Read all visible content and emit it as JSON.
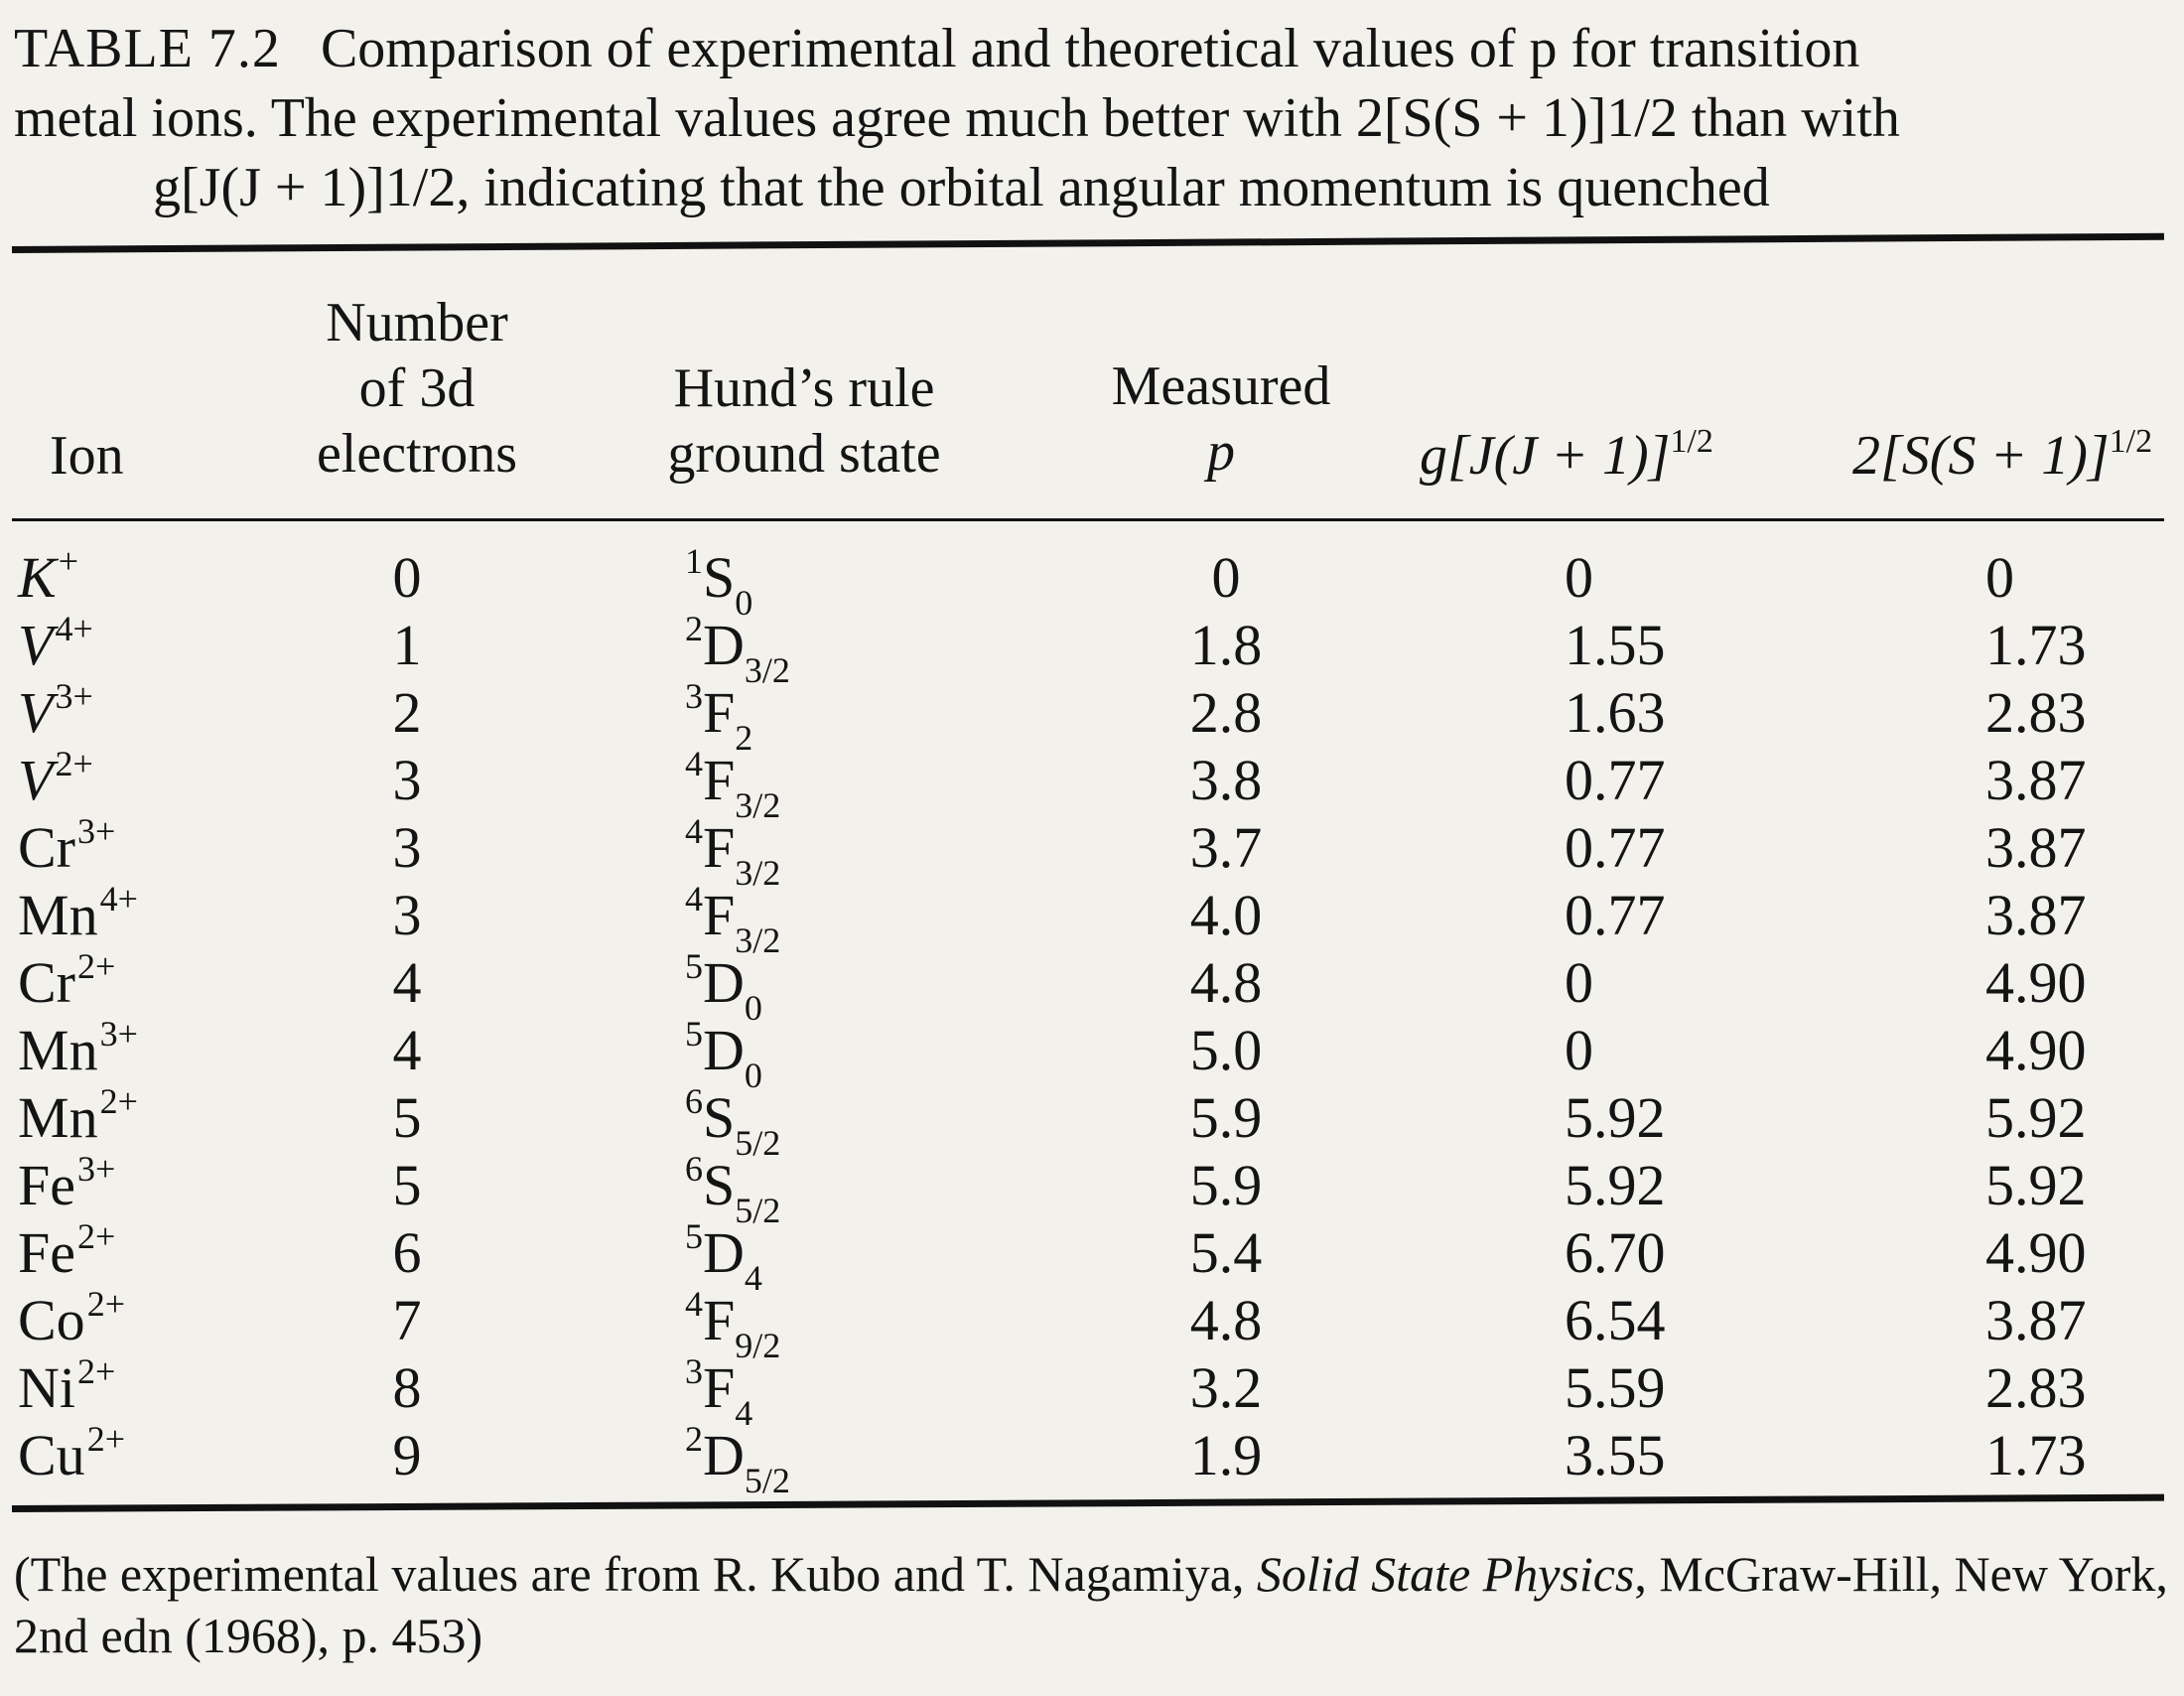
{
  "caption": {
    "label": "TABLE 7.2",
    "line1": "Comparison of experimental and theoretical values of p for transition",
    "line2": "metal ions. The experimental values agree much better with 2[S(S + 1)]1/2 than with",
    "line3": "g[J(J + 1)]1/2, indicating that the orbital angular momentum is quenched"
  },
  "headers": {
    "ion": "Ion",
    "num_line1": "Number",
    "num_line2": "of 3d",
    "num_line3": "electrons",
    "hund_line1": "Hund’s rule",
    "hund_line2": "ground state",
    "meas_line1": "Measured",
    "meas_line2": "p",
    "g_main": "g[J(J + 1)]",
    "g_exp": "1/2",
    "s_main": "2[S(S + 1)]",
    "s_exp": "1/2"
  },
  "rows": [
    {
      "ion": "K",
      "charge": "+",
      "n": "0",
      "mult": "1",
      "letter": "S",
      "j": "0",
      "measured": "0",
      "g": "0",
      "s": "0"
    },
    {
      "ion": "V",
      "charge": "4+",
      "n": "1",
      "mult": "2",
      "letter": "D",
      "j": "3/2",
      "measured": "1.8",
      "g": "1.55",
      "s": "1.73"
    },
    {
      "ion": "V",
      "charge": "3+",
      "n": "2",
      "mult": "3",
      "letter": "F",
      "j": "2",
      "measured": "2.8",
      "g": "1.63",
      "s": "2.83"
    },
    {
      "ion": "V",
      "charge": "2+",
      "n": "3",
      "mult": "4",
      "letter": "F",
      "j": "3/2",
      "measured": "3.8",
      "g": "0.77",
      "s": "3.87"
    },
    {
      "ion": "Cr",
      "charge": "3+",
      "n": "3",
      "mult": "4",
      "letter": "F",
      "j": "3/2",
      "measured": "3.7",
      "g": "0.77",
      "s": "3.87"
    },
    {
      "ion": "Mn",
      "charge": "4+",
      "n": "3",
      "mult": "4",
      "letter": "F",
      "j": "3/2",
      "measured": "4.0",
      "g": "0.77",
      "s": "3.87"
    },
    {
      "ion": "Cr",
      "charge": "2+",
      "n": "4",
      "mult": "5",
      "letter": "D",
      "j": "0",
      "measured": "4.8",
      "g": "0",
      "s": "4.90"
    },
    {
      "ion": "Mn",
      "charge": "3+",
      "n": "4",
      "mult": "5",
      "letter": "D",
      "j": "0",
      "measured": "5.0",
      "g": "0",
      "s": "4.90"
    },
    {
      "ion": "Mn",
      "charge": "2+",
      "n": "5",
      "mult": "6",
      "letter": "S",
      "j": "5/2",
      "measured": "5.9",
      "g": "5.92",
      "s": "5.92"
    },
    {
      "ion": "Fe",
      "charge": "3+",
      "n": "5",
      "mult": "6",
      "letter": "S",
      "j": "5/2",
      "measured": "5.9",
      "g": "5.92",
      "s": "5.92"
    },
    {
      "ion": "Fe",
      "charge": "2+",
      "n": "6",
      "mult": "5",
      "letter": "D",
      "j": "4",
      "measured": "5.4",
      "g": "6.70",
      "s": "4.90"
    },
    {
      "ion": "Co",
      "charge": "2+",
      "n": "7",
      "mult": "4",
      "letter": "F",
      "j": "9/2",
      "measured": "4.8",
      "g": "6.54",
      "s": "3.87"
    },
    {
      "ion": "Ni",
      "charge": "2+",
      "n": "8",
      "mult": "3",
      "letter": "F",
      "j": "4",
      "measured": "3.2",
      "g": "5.59",
      "s": "2.83"
    },
    {
      "ion": "Cu",
      "charge": "2+",
      "n": "9",
      "mult": "2",
      "letter": "D",
      "j": "5/2",
      "measured": "1.9",
      "g": "3.55",
      "s": "1.73"
    }
  ],
  "footnote": {
    "pre": "(The experimental values are from R. Kubo and T. Nagamiya, ",
    "title": "Solid State Physics",
    "post": ", McGraw-Hill, New York, 2nd edn (1968), p. 453)"
  }
}
